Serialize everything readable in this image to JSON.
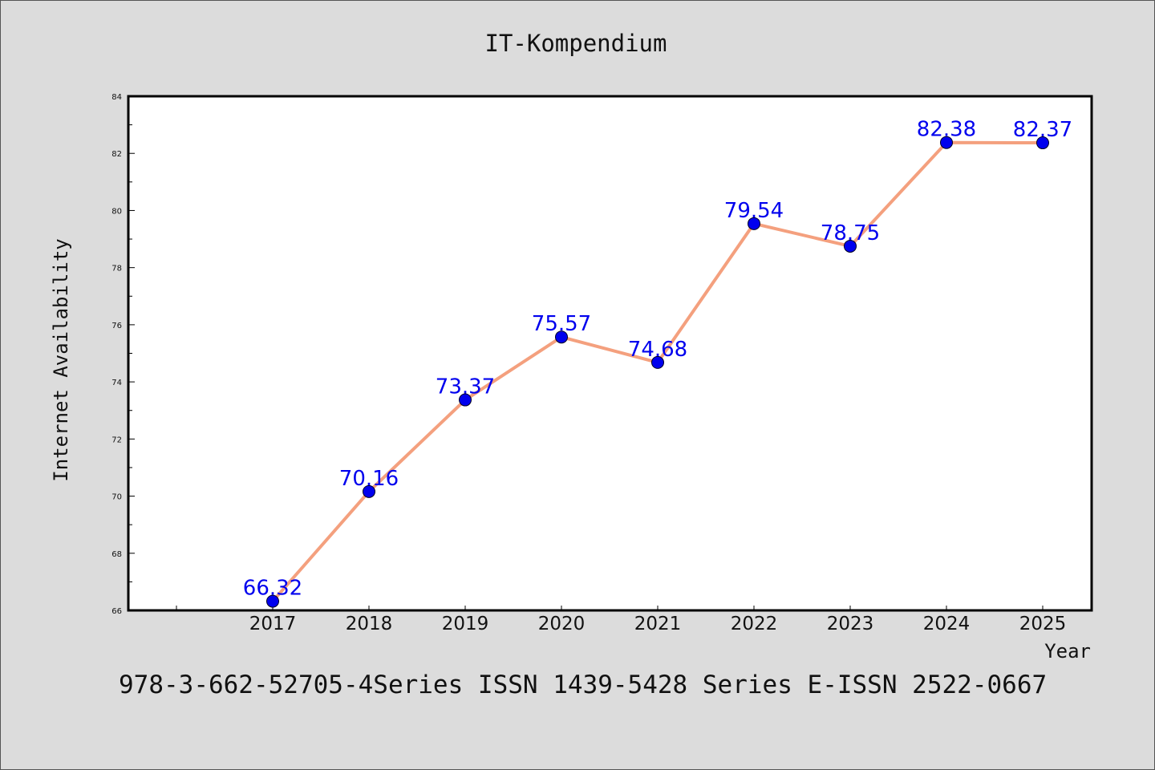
{
  "colors": {
    "background": "#dcdcdc",
    "plot_background": "#ffffff",
    "line": "#f4a07e",
    "marker": "#0000ee",
    "label": "#0000ee"
  },
  "caption": "978-3-662-52705-4Series ISSN 1439-5428 Series E-ISSN 2522-0667",
  "chart_data": {
    "type": "line",
    "title": "IT-Kompendium",
    "xlabel": "Year",
    "ylabel": "Internet Availability",
    "x": [
      "2017",
      "2018",
      "2019",
      "2020",
      "2021",
      "2022",
      "2023",
      "2024",
      "2025"
    ],
    "series": [
      {
        "values": [
          66.32,
          70.16,
          73.37,
          75.57,
          74.68,
          79.54,
          78.75,
          82.38,
          82.37
        ],
        "labels": [
          "66.32",
          "70.16",
          "73.37",
          "75.57",
          "74.68",
          "79.54",
          "78.75",
          "82.38",
          "82.37"
        ]
      }
    ],
    "ylim": [
      66,
      84
    ],
    "yticks": [
      "66",
      "68",
      "70",
      "72",
      "74",
      "76",
      "78",
      "80",
      "82",
      "84"
    ],
    "grid": false,
    "legend": "none"
  }
}
